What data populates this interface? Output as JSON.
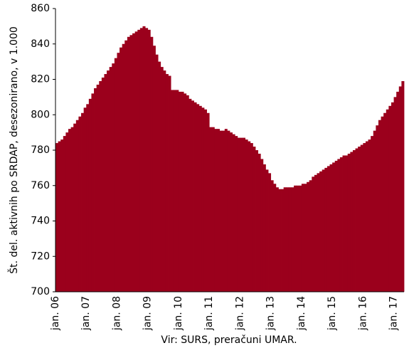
{
  "chart_data": {
    "type": "bar",
    "y_label": "Št. del. aktivnih po SRDAP, desezonirano, v 1.000",
    "source": "Vir: SURS, preračuni UMAR.",
    "color": "#9b001c",
    "ylim": [
      700,
      860
    ],
    "yticks": [
      700,
      720,
      740,
      760,
      780,
      800,
      820,
      840,
      860
    ],
    "categories": [
      "jan. 06",
      null,
      null,
      null,
      null,
      null,
      null,
      null,
      null,
      null,
      null,
      null,
      "jan. 07",
      null,
      null,
      null,
      null,
      null,
      null,
      null,
      null,
      null,
      null,
      null,
      "jan. 08",
      null,
      null,
      null,
      null,
      null,
      null,
      null,
      null,
      null,
      null,
      null,
      "jan. 09",
      null,
      null,
      null,
      null,
      null,
      null,
      null,
      null,
      null,
      null,
      null,
      "jan. 10",
      null,
      null,
      null,
      null,
      null,
      null,
      null,
      null,
      null,
      null,
      null,
      "jan. 11",
      null,
      null,
      null,
      null,
      null,
      null,
      null,
      null,
      null,
      null,
      null,
      "jan. 12",
      null,
      null,
      null,
      null,
      null,
      null,
      null,
      null,
      null,
      null,
      null,
      "jan. 13",
      null,
      null,
      null,
      null,
      null,
      null,
      null,
      null,
      null,
      null,
      null,
      "jan. 14",
      null,
      null,
      null,
      null,
      null,
      null,
      null,
      null,
      null,
      null,
      null,
      "jan. 15",
      null,
      null,
      null,
      null,
      null,
      null,
      null,
      null,
      null,
      null,
      null,
      "jan. 16",
      null,
      null,
      null,
      null,
      null,
      null,
      null,
      null,
      null,
      null,
      null,
      "jan. 17",
      null,
      null,
      null
    ],
    "values": [
      784,
      785,
      786,
      788,
      790,
      792,
      793,
      795,
      797,
      799,
      801,
      804,
      806,
      809,
      812,
      815,
      817,
      819,
      821,
      823,
      825,
      827,
      829,
      832,
      835,
      838,
      840,
      842,
      844,
      845,
      846,
      847,
      848,
      849,
      850,
      849,
      848,
      844,
      839,
      834,
      830,
      827,
      825,
      823,
      822,
      814,
      814,
      814,
      813,
      813,
      812,
      811,
      809,
      808,
      807,
      806,
      805,
      804,
      803,
      801,
      793,
      793,
      792,
      792,
      791,
      791,
      792,
      791,
      790,
      789,
      788,
      787,
      787,
      787,
      786,
      785,
      784,
      782,
      780,
      778,
      775,
      772,
      769,
      767,
      763,
      761,
      759,
      758,
      758,
      759,
      759,
      759,
      759,
      760,
      760,
      760,
      761,
      761,
      762,
      763,
      765,
      766,
      767,
      768,
      769,
      770,
      771,
      772,
      773,
      774,
      775,
      776,
      777,
      777,
      778,
      779,
      780,
      781,
      782,
      783,
      784,
      785,
      786,
      788,
      791,
      794,
      797,
      799,
      801,
      803,
      805,
      807,
      810,
      813,
      816,
      819
    ]
  }
}
